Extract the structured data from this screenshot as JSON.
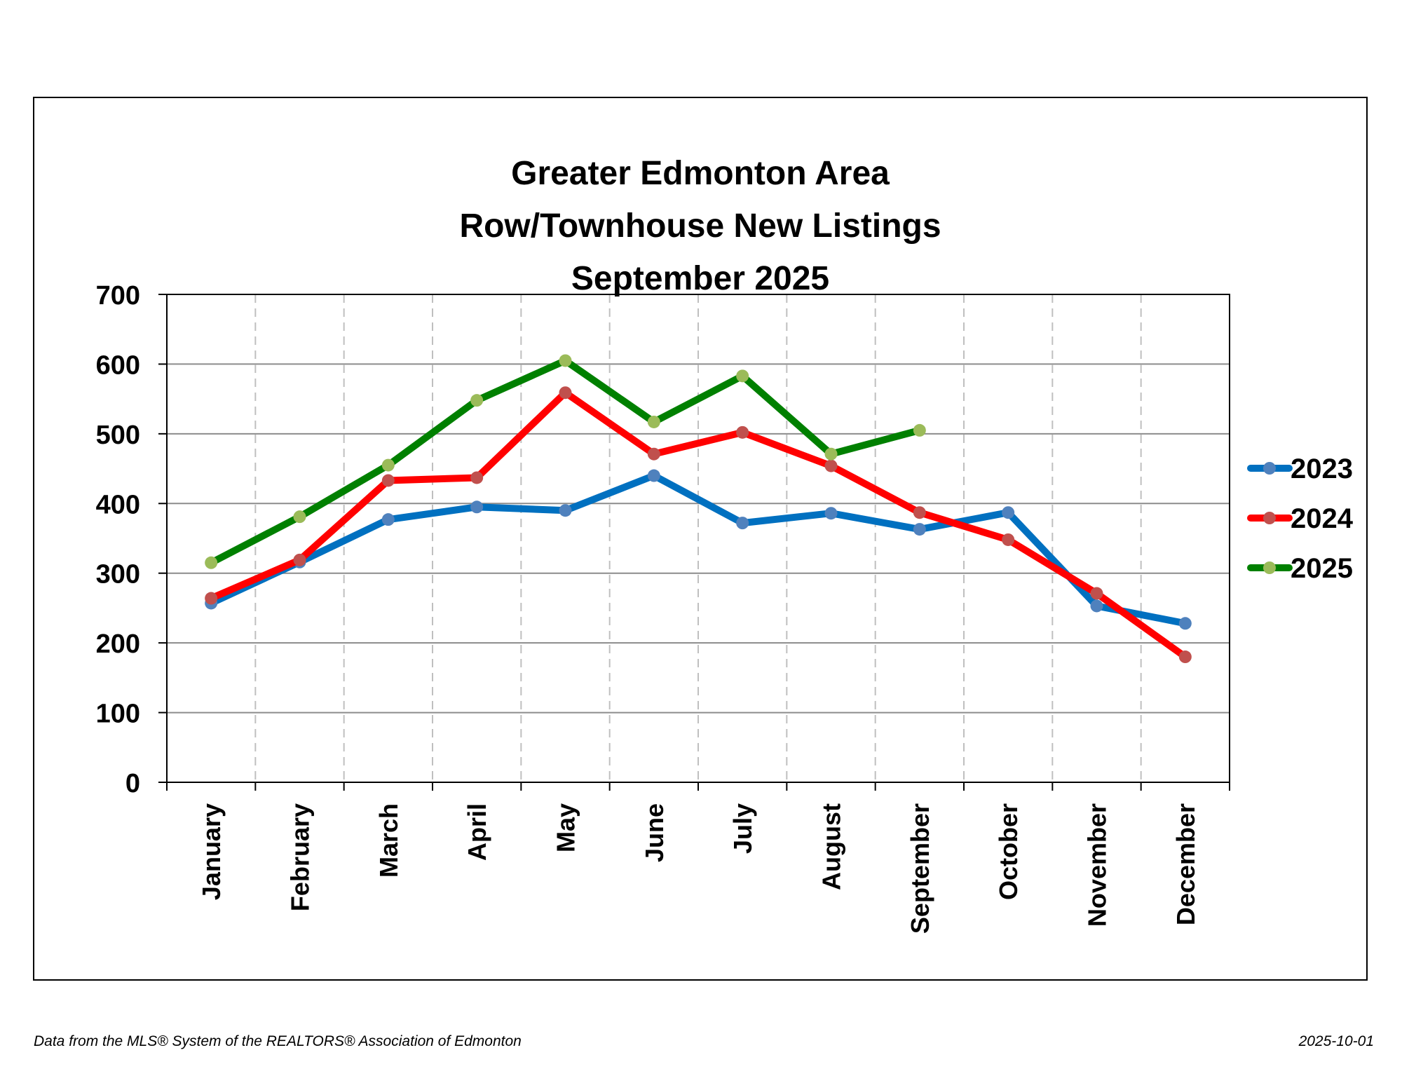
{
  "chart_data": {
    "type": "line",
    "title": [
      "Greater Edmonton Area",
      "Row/Townhouse New Listings",
      "September 2025"
    ],
    "xlabel": "",
    "ylabel": "",
    "ylim": [
      0,
      700
    ],
    "yticks": [
      0,
      100,
      200,
      300,
      400,
      500,
      600,
      700
    ],
    "categories": [
      "January",
      "February",
      "March",
      "April",
      "May",
      "June",
      "July",
      "August",
      "September",
      "October",
      "November",
      "December"
    ],
    "grid": {
      "horizontal": "solid",
      "vertical": "dashed"
    },
    "legend_position": "right",
    "series": [
      {
        "name": "2023",
        "color": "#0070C0",
        "marker_color": "#4F81BD",
        "values": [
          257,
          316,
          377,
          395,
          390,
          440,
          372,
          386,
          363,
          387,
          253,
          228
        ]
      },
      {
        "name": "2024",
        "color": "#FF0000",
        "marker_color": "#C0504D",
        "values": [
          264,
          319,
          433,
          437,
          559,
          471,
          502,
          454,
          387,
          348,
          271,
          180
        ]
      },
      {
        "name": "2025",
        "color": "#008000",
        "marker_color": "#9BBB59",
        "values": [
          315,
          381,
          455,
          548,
          605,
          517,
          583,
          471,
          505,
          null,
          null,
          null
        ]
      }
    ]
  },
  "footer": {
    "source": "Data from the MLS® System of the REALTORS® Association of Edmonton",
    "date": "2025-10-01"
  }
}
